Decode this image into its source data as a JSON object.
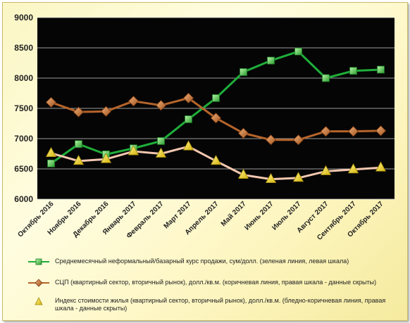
{
  "chart_data": {
    "type": "line",
    "categories": [
      "Октябрь 2016",
      "Ноябрь 2016",
      "Декабрь 2016",
      "Январь 2017",
      "Февраль 2017",
      "Март 2017",
      "Апрель 2017",
      "Май 2017",
      "Июнь 2017",
      "Июль 2017",
      "Август 2017",
      "Сентябрь 2017",
      "Октябрь 2017"
    ],
    "ylim": [
      6000,
      9000
    ],
    "yticks": [
      "6000",
      "6500",
      "7000",
      "7500",
      "8000",
      "8500",
      "9000"
    ],
    "grid": true,
    "legend_position": "bottom",
    "colors": {
      "background": "#050505",
      "grid": "#cfcfcf"
    },
    "series": [
      {
        "name": "Среднемесячный неформальный/базарный курс продажи,  сум/долл. (зеленая линия,  левая шкала)",
        "values": [
          6590,
          6910,
          6740,
          6840,
          6960,
          7320,
          7670,
          8100,
          8290,
          8440,
          8000,
          8120,
          8140
        ],
        "color": "#1fae3a",
        "marker": "square"
      },
      {
        "name": "СЦП (квартирный сектор, вторичный рынок),  долл./кв.м. (коричневая линия,  правая шкала - данные скрыты)",
        "values": [
          7600,
          7440,
          7450,
          7620,
          7550,
          7670,
          7340,
          7090,
          6980,
          6980,
          7120,
          7120,
          7130
        ],
        "color": "#b5642a",
        "marker": "diamond"
      },
      {
        "name": "Индекс стоимости жилья (квартирный сектор, вторичный рынок),  долл./кв.м. (бледно-коричневая линия,  правая шкала - данные скрыты)",
        "values": [
          6760,
          6630,
          6660,
          6790,
          6750,
          6870,
          6630,
          6400,
          6330,
          6350,
          6460,
          6490,
          6520
        ],
        "color": "#f3c8b0",
        "marker": "triangle"
      }
    ]
  }
}
